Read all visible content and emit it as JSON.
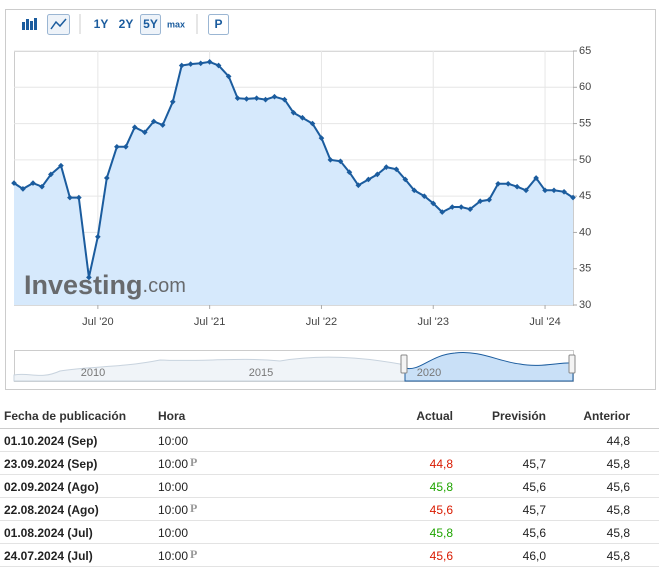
{
  "toolbar": {
    "buttons": [
      "1Y",
      "2Y",
      "5Y",
      "max",
      "P"
    ]
  },
  "chart_data": {
    "type": "line",
    "color": "#1b5c9e",
    "fill": "#d6e9fc",
    "watermark": {
      "brand": "Investing",
      "suffix": ".com"
    },
    "x": [
      2019.75,
      2019.83,
      2019.92,
      2020,
      2020.08,
      2020.17,
      2020.25,
      2020.33,
      2020.42,
      2020.5,
      2020.58,
      2020.67,
      2020.75,
      2020.83,
      2020.92,
      2021,
      2021.08,
      2021.17,
      2021.25,
      2021.33,
      2021.42,
      2021.5,
      2021.58,
      2021.67,
      2021.75,
      2021.83,
      2021.92,
      2022,
      2022.08,
      2022.17,
      2022.25,
      2022.33,
      2022.42,
      2022.5,
      2022.58,
      2022.67,
      2022.75,
      2022.83,
      2022.92,
      2023,
      2023.08,
      2023.17,
      2023.25,
      2023.33,
      2023.42,
      2023.5,
      2023.58,
      2023.67,
      2023.75,
      2023.83,
      2023.92,
      2024,
      2024.08,
      2024.17,
      2024.25,
      2024.33,
      2024.42,
      2024.5,
      2024.58,
      2024.67,
      2024.75
    ],
    "values": [
      46.8,
      46,
      46.8,
      46.3,
      48,
      49.2,
      44.8,
      44.8,
      33.8,
      39.4,
      47.5,
      51.8,
      51.8,
      54.5,
      53.8,
      55.3,
      54.8,
      58,
      63,
      63.2,
      63.3,
      63.5,
      63,
      61.5,
      58.5,
      58.4,
      58.5,
      58.3,
      58.7,
      58.3,
      56.5,
      55.8,
      55,
      53,
      50,
      49.8,
      48.3,
      46.5,
      47.3,
      48,
      49,
      48.7,
      47.3,
      45.8,
      45,
      44,
      42.8,
      43.5,
      43.5,
      43.2,
      44.3,
      44.5,
      46.7,
      46.7,
      46.3,
      45.8,
      47.5,
      45.8,
      45.8,
      45.6,
      44.8
    ],
    "xlim": [
      2019.75,
      2024.75
    ],
    "xticks": [
      {
        "value": 2020.5,
        "label": "Jul '20"
      },
      {
        "value": 2021.5,
        "label": "Jul '21"
      },
      {
        "value": 2022.5,
        "label": "Jul '22"
      },
      {
        "value": 2023.5,
        "label": "Jul '23"
      },
      {
        "value": 2024.5,
        "label": "Jul '24"
      }
    ],
    "ylim": [
      30,
      65
    ],
    "yticks": [
      30,
      35,
      40,
      45,
      50,
      55,
      60,
      65
    ],
    "grid": true,
    "navigator_labels": [
      "2010",
      "2015",
      "2020"
    ]
  },
  "table": {
    "headers": [
      "Fecha de publicación",
      "Hora",
      "Actual",
      "Previsión",
      "Anterior"
    ],
    "rows": [
      {
        "date": "01.10.2024 (Sep)",
        "time": "10:00",
        "preliminary": false,
        "actual": null,
        "actual_color": null,
        "forecast": null,
        "previous": "44,8"
      },
      {
        "date": "23.09.2024 (Sep)",
        "time": "10:00",
        "preliminary": true,
        "actual": "44,8",
        "actual_color": "#d91a00",
        "forecast": "45,7",
        "previous": "45,8"
      },
      {
        "date": "02.09.2024 (Ago)",
        "time": "10:00",
        "preliminary": false,
        "actual": "45,8",
        "actual_color": "#1fa400",
        "forecast": "45,6",
        "previous": "45,6"
      },
      {
        "date": "22.08.2024 (Ago)",
        "time": "10:00",
        "preliminary": true,
        "actual": "45,6",
        "actual_color": "#d91a00",
        "forecast": "45,7",
        "previous": "45,8"
      },
      {
        "date": "01.08.2024 (Jul)",
        "time": "10:00",
        "preliminary": false,
        "actual": "45,8",
        "actual_color": "#1fa400",
        "forecast": "45,6",
        "previous": "45,8"
      },
      {
        "date": "24.07.2024 (Jul)",
        "time": "10:00",
        "preliminary": true,
        "actual": "45,6",
        "actual_color": "#d91a00",
        "forecast": "46,0",
        "previous": "45,8"
      }
    ]
  }
}
